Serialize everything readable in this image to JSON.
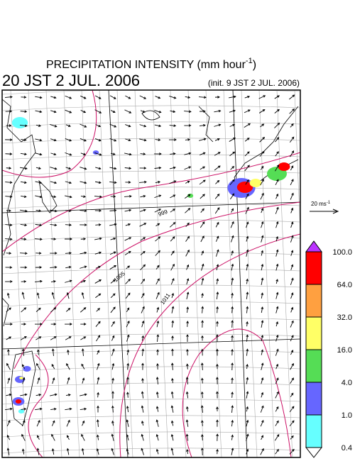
{
  "header": {
    "title": {
      "main": "PRECIPITATION INTENSITY (mm hour",
      "exponent": "-1",
      "close": ")"
    },
    "valid_time": "20 JST 2 JUL. 2006",
    "init_time": "(init. 9 JST 2 JUL. 2006)"
  },
  "vector_scale": {
    "main": "20 ms",
    "exponent": "-1"
  },
  "isobar_labels": [
    "999",
    "1005",
    "1011"
  ],
  "colorbar": {
    "ticks": [
      {
        "value": 100,
        "label": "100.0"
      },
      {
        "value": 64,
        "label": "64.0"
      },
      {
        "value": 32,
        "label": "32.0"
      },
      {
        "value": 16,
        "label": "16.0"
      },
      {
        "value": 4,
        "label": "4.0"
      },
      {
        "value": 1,
        "label": "1.0"
      },
      {
        "value": 0.4,
        "label": "0.4"
      }
    ],
    "colors": [
      "#ff0000",
      "#ffa040",
      "#ffff66",
      "#55dd55",
      "#6666ff",
      "#66ffff"
    ],
    "over_color": "#bb33ff",
    "under_color": "#ffffff"
  }
}
